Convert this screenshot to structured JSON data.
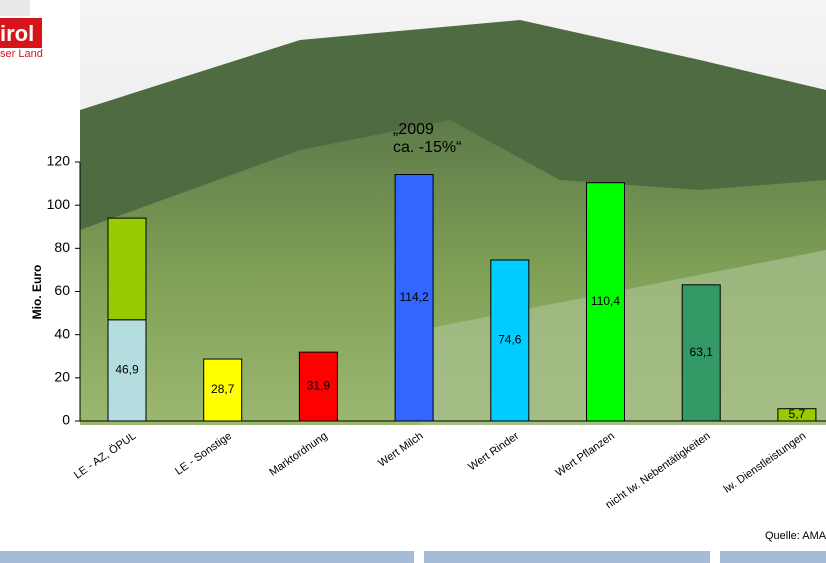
{
  "logo": {
    "title": "irol",
    "subtitle": "ser Land"
  },
  "chart_data": {
    "type": "stacked_bar",
    "categories": [
      "LE - AZ, ÖPUL",
      "LE - Sonstige",
      "Marktordnung",
      "Wert Milch",
      "Wert Rinder",
      "Wert Pflanzen",
      "nicht lw. Nebentätigkeiten",
      "lw. Dienstleistungen"
    ],
    "series": [
      {
        "values": [
          46.9,
          28.7,
          31.9,
          114.2,
          74.6,
          110.4,
          63.1,
          5.7
        ],
        "value_labels": [
          "46,9",
          "28,7",
          "31,9",
          "114,2",
          "74,6",
          "110,4",
          "63,1",
          "5,7"
        ],
        "colors": [
          "#b4dde0",
          "#ffff00",
          "#ff0000",
          "#3366ff",
          "#00ccff",
          "#00ff00",
          "#339966",
          "#99cc00"
        ]
      },
      {
        "values": [
          47.1,
          null,
          null,
          null,
          null,
          null,
          null,
          null
        ],
        "colors": [
          "#99cc00",
          null,
          null,
          null,
          null,
          null,
          null,
          null
        ]
      }
    ],
    "y_label": "Mio. Euro",
    "annotation": [
      "„2009",
      "ca. -15%“"
    ],
    "source": "Quelle: AMA",
    "ylim": [
      0,
      120
    ],
    "yticks": [
      0,
      20,
      40,
      60,
      80,
      100,
      120
    ]
  }
}
